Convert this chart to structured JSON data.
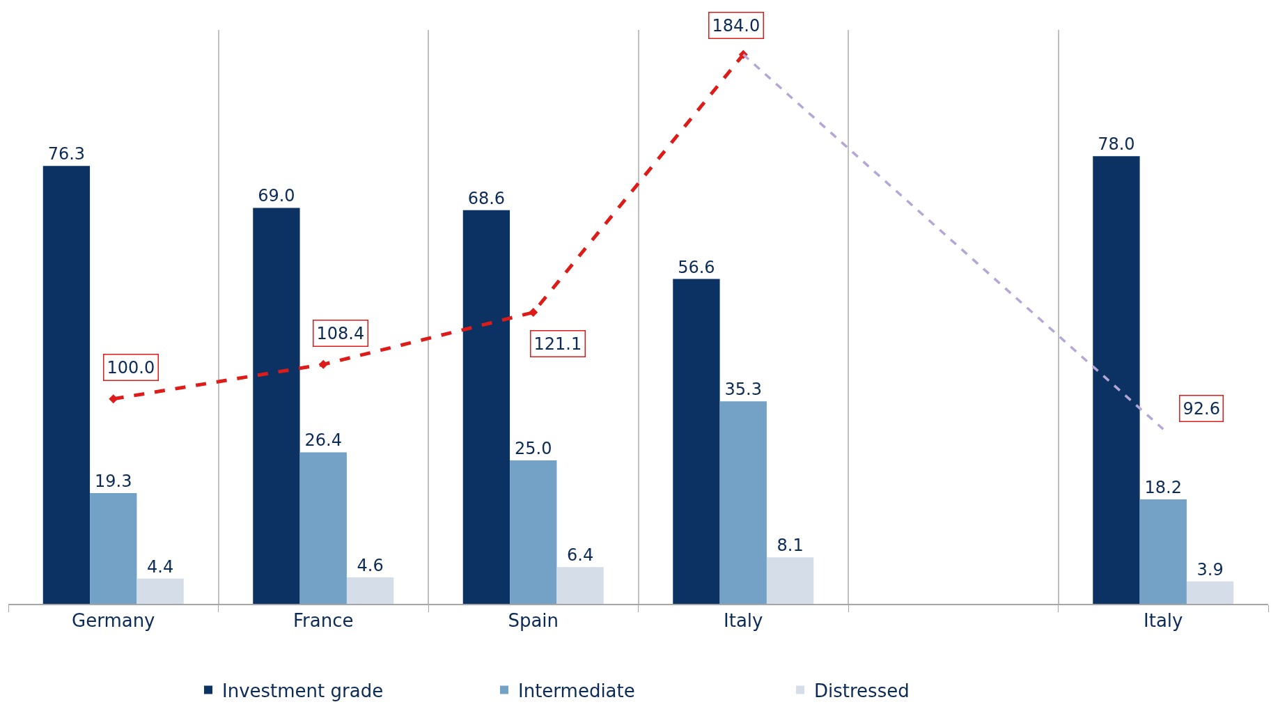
{
  "chart_data": {
    "type": "bar",
    "categories": [
      "Germany",
      "France",
      "Spain",
      "Italy",
      null,
      "Italy"
    ],
    "series": [
      {
        "name": "Investment grade",
        "color": "#0b3263",
        "values": [
          76.3,
          69.0,
          68.6,
          56.6,
          null,
          78.0
        ],
        "value_labels": [
          "76.3",
          "69.0",
          "68.6",
          "56.6",
          null,
          "78.0"
        ]
      },
      {
        "name": "Intermediate",
        "color": "#73a2c6",
        "values": [
          19.3,
          26.4,
          25.0,
          35.3,
          null,
          18.2
        ],
        "value_labels": [
          "19.3",
          "26.4",
          "25.0",
          "35.3",
          null,
          "18.2"
        ]
      },
      {
        "name": "Distressed",
        "color": "#d5dee8",
        "values": [
          4.4,
          4.6,
          6.4,
          8.1,
          null,
          3.9
        ],
        "value_labels": [
          "4.4",
          "4.6",
          "6.4",
          "8.1",
          null,
          "3.9"
        ]
      },
      {
        "type": "line",
        "axis": "y2",
        "color": "#dd1c1a",
        "line_style": "dashed",
        "marker": "diamond",
        "values": [
          100.0,
          108.4,
          121.1,
          184.0,
          null,
          null
        ],
        "value_labels": [
          "100.0",
          "108.4",
          "121.1",
          "184.0",
          null,
          null
        ]
      },
      {
        "type": "line",
        "axis": "y2",
        "color": "#b4a7d6",
        "line_style": "dashed",
        "marker": "none",
        "values": [
          null,
          null,
          null,
          184.0,
          null,
          92.6
        ],
        "value_labels": [
          null,
          null,
          null,
          null,
          null,
          "92.6"
        ]
      }
    ],
    "ylim": [
      0,
      100
    ],
    "y2lim": [
      50,
      190
    ],
    "grid": "x",
    "legend": "bottom",
    "tick_labels": "x"
  }
}
